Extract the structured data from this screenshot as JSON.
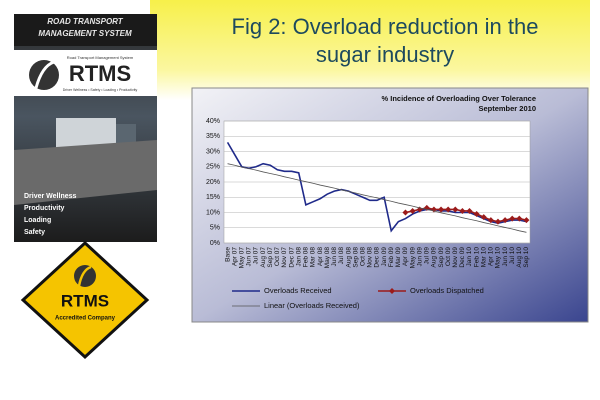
{
  "slide": {
    "title_lines": [
      "Fig 2: Overload reduction in the",
      "sugar industry"
    ],
    "poster": {
      "banner": [
        "ROAD TRANSPORT",
        "MANAGEMENT SYSTEM"
      ],
      "logo": "RTMS",
      "logo_sub": "Road Transport Management System",
      "tagline": "Driver Wellness • Safety • Loading • Productivity",
      "list": [
        "Driver Wellness",
        "Productivity",
        "Loading",
        "Safety"
      ]
    },
    "badge": {
      "name": "RTMS",
      "sub": "Accredited Company"
    }
  },
  "chart_data": {
    "type": "line",
    "title": "% Incidence of Overloading Over Tolerance",
    "subtitle": "September 2010",
    "categories": [
      "Base",
      "Apr 07",
      "May 07",
      "Jun 07",
      "Jul 07",
      "Aug 07",
      "Sep 07",
      "Oct 07",
      "Nov 07",
      "Dec 07",
      "Jan 08",
      "Feb 08",
      "Mar 08",
      "Apr 08",
      "May 08",
      "Jun 08",
      "Jul 08",
      "Aug 08",
      "Sep 08",
      "Oct 08",
      "Nov 08",
      "Dec 08",
      "Jan 09",
      "Feb 09",
      "Mar 09",
      "Apr 09",
      "May 09",
      "Jun 09",
      "Jul 09",
      "Aug 09",
      "Sep 09",
      "Oct 09",
      "Nov 09",
      "Dec 09",
      "Jan 10",
      "Feb 10",
      "Mar 10",
      "Apr 10",
      "May 10",
      "Jun 10",
      "Jul 10",
      "Aug 10",
      "Sep 10"
    ],
    "series": [
      {
        "name": "Overloads Received",
        "color": "#1f2a8a",
        "marker": false,
        "values": [
          33,
          29,
          25,
          24.5,
          25,
          26,
          25.5,
          24,
          23.5,
          23.5,
          23,
          12.5,
          13.5,
          14.5,
          16,
          17,
          17.5,
          17,
          16,
          15,
          14,
          14,
          15,
          4,
          7,
          8,
          9.5,
          10.5,
          11,
          11,
          10.5,
          10.5,
          10,
          10,
          10,
          9,
          8,
          7,
          6.5,
          7,
          7.5,
          7.5,
          7
        ]
      },
      {
        "name": "Overloads Dispatched",
        "color": "#9b1b1b",
        "marker": true,
        "values": [
          null,
          null,
          null,
          null,
          null,
          null,
          null,
          null,
          null,
          null,
          null,
          null,
          null,
          null,
          null,
          null,
          null,
          null,
          null,
          null,
          null,
          null,
          null,
          null,
          null,
          10,
          10.5,
          11,
          11.5,
          11,
          11,
          11,
          11,
          10.5,
          10.5,
          9.5,
          8.5,
          7.5,
          7,
          7.5,
          8,
          8,
          7.5
        ]
      },
      {
        "name": "Linear (Overloads Received)",
        "color": "#555555",
        "marker": false,
        "values": [
          26.0,
          25.5,
          24.9,
          24.4,
          23.9,
          23.3,
          22.8,
          22.3,
          21.7,
          21.2,
          20.6,
          20.1,
          19.6,
          19.0,
          18.5,
          18.0,
          17.4,
          16.9,
          16.4,
          15.8,
          15.3,
          14.8,
          14.2,
          13.7,
          13.1,
          12.6,
          12.1,
          11.5,
          11.0,
          10.5,
          9.9,
          9.4,
          8.9,
          8.3,
          7.8,
          7.3,
          6.7,
          6.2,
          5.6,
          5.1,
          4.6,
          4.0,
          3.5
        ]
      }
    ],
    "ylim": [
      0,
      40
    ],
    "yticks": [
      {
        "value": 0,
        "label": "0%"
      },
      {
        "value": 5,
        "label": "5%"
      },
      {
        "value": 10,
        "label": "10%"
      },
      {
        "value": 15,
        "label": "15%"
      },
      {
        "value": 20,
        "label": "20%"
      },
      {
        "value": 25,
        "label": "25%"
      },
      {
        "value": 30,
        "label": "30%"
      },
      {
        "value": 35,
        "label": "35%"
      },
      {
        "value": 40,
        "label": "40%"
      }
    ],
    "grid": true
  }
}
